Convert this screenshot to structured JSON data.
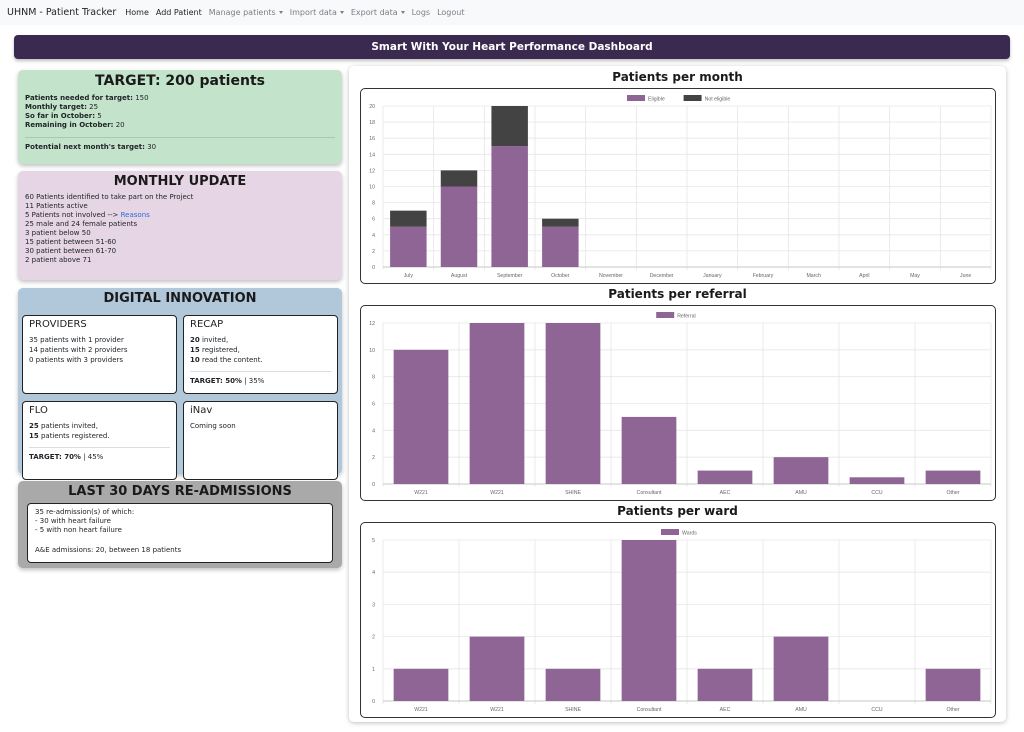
{
  "nav": {
    "brand": "UHNM - Patient Tracker",
    "items": [
      {
        "label": "Home",
        "active": true,
        "dropdown": false
      },
      {
        "label": "Add Patient",
        "active": true,
        "dropdown": false
      },
      {
        "label": "Manage patients",
        "active": false,
        "dropdown": true
      },
      {
        "label": "Import data",
        "active": false,
        "dropdown": true
      },
      {
        "label": "Export data",
        "active": false,
        "dropdown": true
      },
      {
        "label": "Logs",
        "active": false,
        "dropdown": false
      },
      {
        "label": "Logout",
        "active": false,
        "dropdown": false
      }
    ]
  },
  "header": {
    "title": "Smart With Your Heart Performance Dashboard"
  },
  "target": {
    "title": "TARGET: 200 patients",
    "lines": [
      {
        "label": "Patients needed for target:",
        "value": "150"
      },
      {
        "label": "Monthly target:",
        "value": "25"
      },
      {
        "label": "So far in October:",
        "value": "5"
      },
      {
        "label": "Remaining in October:",
        "value": "20"
      }
    ],
    "next": {
      "label": "Potential next month's target:",
      "value": "30"
    }
  },
  "monthly": {
    "title": "MONTHLY UPDATE",
    "line1": "60 Patients identified to take part on the Project",
    "line2": "11 Patients active",
    "line3_text": "5 Patients not involved --> ",
    "line3_link": "Reasons",
    "line4": "25 male and 24 female patients",
    "line5": "3 patient below 50",
    "line6": "15 patient between 51-60",
    "line7": "30 patient between 61-70",
    "line8": "2 patient above 71"
  },
  "digital": {
    "title": "DIGITAL INNOVATION",
    "providers": {
      "title": "PROVIDERS",
      "line1": "35 patients with 1 provider",
      "line2": "14 patients with 2 providers",
      "line3": "0 patients with 3 providers"
    },
    "recap": {
      "title": "RECAP",
      "n1": "20",
      "t1": " invited,",
      "n2": "15",
      "t2": " registered,",
      "n3": "10",
      "t3": " read the content.",
      "target_label": "TARGET: 50%",
      "target_rest": " | 35%"
    },
    "flo": {
      "title": "FLO",
      "n1": "25",
      "t1": " patients invited,",
      "n2": "15",
      "t2": " patients registered.",
      "target_label": "TARGET: 70%",
      "target_rest": " | 45%"
    },
    "inav": {
      "title": "iNav",
      "line1": "Coming soon"
    }
  },
  "readmit": {
    "title": "LAST 30 DAYS RE-ADMISSIONS",
    "line1": "35 re-admission(s) of which:",
    "line2": "- 30 with heart failure",
    "line3": "- 5 with non heart failure",
    "line4": "A&E admissions: 20, between 18 patients"
  },
  "chart_data": [
    {
      "type": "bar",
      "stacked": true,
      "title": "Patients per month",
      "categories": [
        "July",
        "August",
        "September",
        "October",
        "November",
        "December",
        "January",
        "February",
        "March",
        "April",
        "May",
        "June"
      ],
      "series": [
        {
          "name": "Eligible",
          "color": "#8f6596",
          "values": [
            5,
            10,
            15,
            5,
            0,
            0,
            0,
            0,
            0,
            0,
            0,
            0
          ]
        },
        {
          "name": "Not eligible",
          "color": "#434343",
          "values": [
            2,
            2,
            5,
            1,
            0,
            0,
            0,
            0,
            0,
            0,
            0,
            0
          ]
        }
      ],
      "ylim": [
        0,
        20
      ],
      "yticks": [
        0,
        2,
        4,
        6,
        8,
        10,
        12,
        14,
        16,
        18,
        20
      ],
      "legend": "top-center",
      "grid": true
    },
    {
      "type": "bar",
      "title": "Patients per referral",
      "categories": [
        "W221",
        "W221",
        "SHINE",
        "Consultant",
        "AEC",
        "AMU",
        "CCU",
        "Other"
      ],
      "series": [
        {
          "name": "Referral",
          "color": "#8f6596",
          "values": [
            10,
            12,
            12,
            5,
            1,
            2,
            0.5,
            1
          ]
        }
      ],
      "ylim": [
        0,
        12
      ],
      "yticks": [
        0,
        2,
        4,
        6,
        8,
        10,
        12
      ],
      "legend": "top-center",
      "grid": true
    },
    {
      "type": "bar",
      "title": "Patients per ward",
      "categories": [
        "W221",
        "W221",
        "SHINE",
        "Consultant",
        "AEC",
        "AMU",
        "CCU",
        "Other"
      ],
      "series": [
        {
          "name": "Wards",
          "color": "#8f6596",
          "values": [
            1,
            2,
            1,
            5,
            1,
            2,
            0,
            1
          ]
        }
      ],
      "ylim": [
        0,
        5
      ],
      "yticks": [
        0,
        1,
        2,
        3,
        4,
        5
      ],
      "legend": "top-center",
      "grid": true
    }
  ]
}
